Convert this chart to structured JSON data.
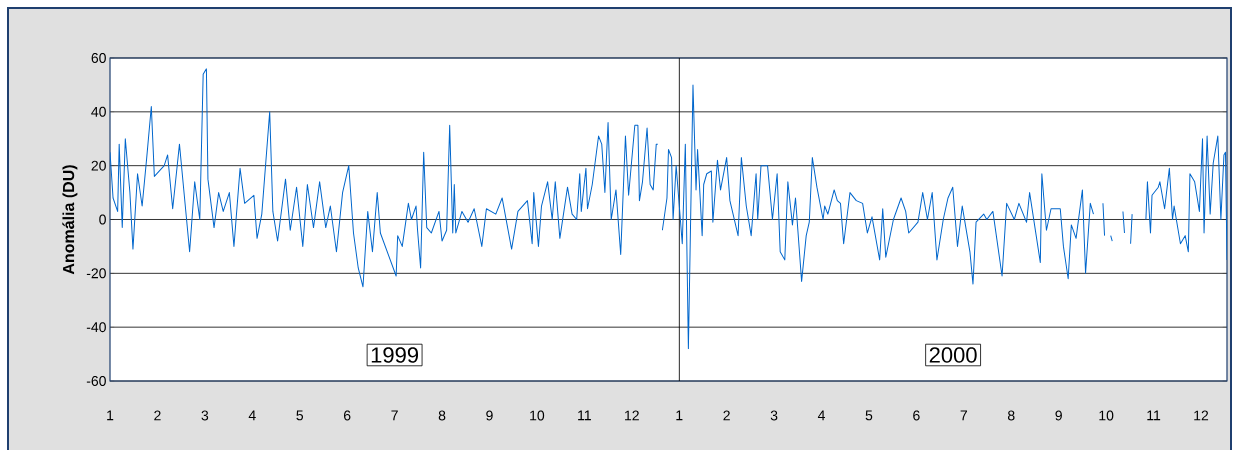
{
  "chart_data": {
    "type": "line",
    "ylabel": "Anomália (DU)",
    "color": "#0066cc",
    "annotations": [
      "1999",
      "2000"
    ],
    "x": [
      "1999-01-01",
      "1999-01-03",
      "1999-01-06",
      "1999-01-07",
      "1999-01-09",
      "1999-01-11",
      "1999-01-14",
      "1999-01-16",
      "1999-01-19",
      "1999-01-22",
      "1999-01-25",
      "1999-01-28",
      "1999-01-30",
      "1999-02-05",
      "1999-02-07",
      "1999-02-10",
      "1999-02-14",
      "1999-02-17",
      "1999-02-20",
      "1999-02-23",
      "1999-02-26",
      "1999-02-28",
      "1999-03-02",
      "1999-03-03",
      "1999-03-07",
      "1999-03-10",
      "1999-03-13",
      "1999-03-17",
      "1999-03-20",
      "1999-03-24",
      "1999-03-27",
      "1999-04-02",
      "1999-04-04",
      "1999-04-07",
      "1999-04-12",
      "1999-04-14",
      "1999-04-17",
      "1999-04-22",
      "1999-04-25",
      "1999-04-29",
      "1999-05-03",
      "1999-05-06",
      "1999-05-10",
      "1999-05-14",
      "1999-05-18",
      "1999-05-21",
      "1999-05-25",
      "1999-05-29",
      "1999-06-02",
      "1999-06-05",
      "1999-06-08",
      "1999-06-11",
      "1999-06-14",
      "1999-06-17",
      "1999-06-20",
      "1999-06-22",
      "1999-07-02",
      "1999-07-03",
      "1999-07-06",
      "1999-07-10",
      "1999-07-12",
      "1999-07-15",
      "1999-07-16",
      "1999-07-18",
      "1999-07-20",
      "1999-07-22",
      "1999-07-25",
      "1999-07-30",
      "1999-08-01",
      "1999-08-04",
      "1999-08-06",
      "1999-08-08",
      "1999-08-09",
      "1999-08-10",
      "1999-08-14",
      "1999-08-18",
      "1999-08-22",
      "1999-08-27",
      "1999-08-30",
      "1999-09-05",
      "1999-09-09",
      "1999-09-15",
      "1999-09-19",
      "1999-09-25",
      "1999-09-28",
      "1999-09-29",
      "1999-10-02",
      "1999-10-04",
      "1999-10-08",
      "1999-10-11",
      "1999-10-13",
      "1999-10-16",
      "1999-10-21",
      "1999-10-24",
      "1999-10-27",
      "1999-10-29",
      "1999-10-30",
      "1999-11-02",
      "1999-11-03",
      "1999-11-06",
      "1999-11-10",
      "1999-11-12",
      "1999-11-14",
      "1999-11-16",
      "1999-11-18",
      "1999-11-21",
      "1999-11-24",
      "1999-11-27",
      "1999-11-29",
      "1999-12-03",
      "1999-12-05",
      "1999-12-06",
      "1999-12-08",
      "1999-12-11",
      "1999-12-13",
      "1999-12-15",
      "1999-12-17",
      "1999-12-18",
      "1999-12-19",
      "1999-12-21",
      "1999-12-24",
      "1999-12-25",
      "1999-12-27",
      "1999-12-28",
      "1999-12-30",
      "2000-01-03",
      "2000-01-05",
      "2000-01-07",
      "2000-01-10",
      "2000-01-12",
      "2000-01-13",
      "2000-01-16",
      "2000-01-17",
      "2000-01-19",
      "2000-01-22",
      "2000-01-23",
      "2000-01-26",
      "2000-01-28",
      "2000-02-01",
      "2000-02-03",
      "2000-02-08",
      "2000-02-10",
      "2000-02-13",
      "2000-02-16",
      "2000-02-19",
      "2000-02-20",
      "2000-02-22",
      "2000-02-26",
      "2000-02-29",
      "2000-03-03",
      "2000-03-05",
      "2000-03-08",
      "2000-03-10",
      "2000-03-13",
      "2000-03-15",
      "2000-03-19",
      "2000-03-22",
      "2000-03-24",
      "2000-03-26",
      "2000-03-29",
      "2000-04-02",
      "2000-04-03",
      "2000-04-05",
      "2000-04-09",
      "2000-04-11",
      "2000-04-13",
      "2000-04-15",
      "2000-04-19",
      "2000-04-23",
      "2000-04-27",
      "2000-04-30",
      "2000-05-03",
      "2000-05-08",
      "2000-05-10",
      "2000-05-12",
      "2000-05-17",
      "2000-05-22",
      "2000-05-25",
      "2000-05-27",
      "2000-06-02",
      "2000-06-05",
      "2000-06-08",
      "2000-06-11",
      "2000-06-14",
      "2000-06-18",
      "2000-06-21",
      "2000-06-24",
      "2000-06-27",
      "2000-06-30",
      "2000-07-05",
      "2000-07-07",
      "2000-07-09",
      "2000-07-14",
      "2000-07-16",
      "2000-07-20",
      "2000-07-26",
      "2000-07-29",
      "2000-08-03",
      "2000-08-06",
      "2000-08-11",
      "2000-08-13",
      "2000-08-20",
      "2000-08-21",
      "2000-08-24",
      "2000-08-27",
      "2000-09-02",
      "2000-09-04",
      "2000-09-07",
      "2000-09-09",
      "2000-09-12",
      "2000-09-14",
      "2000-09-16",
      "2000-09-18",
      "2000-09-21",
      "2000-09-23",
      "2000-09-26",
      "2000-09-29",
      "2000-09-30",
      "2000-10-03",
      "2000-10-04",
      "2000-10-05",
      "2000-10-09",
      "2000-10-12",
      "2000-10-13",
      "2000-10-15",
      "2000-10-17",
      "2000-10-18",
      "2000-10-23",
      "2000-10-27",
      "2000-10-28",
      "2000-10-30",
      "2000-10-31",
      "2000-11-04",
      "2000-11-05",
      "2000-11-08",
      "2000-11-11",
      "2000-11-13",
      "2000-11-14",
      "2000-11-18",
      "2000-11-21",
      "2000-11-23",
      "2000-11-24",
      "2000-11-27",
      "2000-11-30",
      "2000-12-02",
      "2000-12-03",
      "2000-12-05",
      "2000-12-07",
      "2000-12-09",
      "2000-12-12",
      "2000-12-14",
      "2000-12-16",
      "2000-12-17",
      "2000-12-18"
    ],
    "values": [
      25,
      8,
      3,
      28,
      -3,
      30,
      10,
      -11,
      17,
      5,
      23,
      42,
      16,
      20,
      24,
      4,
      28,
      8,
      -12,
      14,
      0,
      54,
      56,
      15,
      -3,
      10,
      3,
      10,
      -10,
      19,
      6,
      9,
      -7,
      2,
      40,
      3,
      -8,
      15,
      -4,
      12,
      -10,
      13,
      -3,
      14,
      -3,
      5,
      -12,
      10,
      20,
      -5,
      -18,
      -25,
      3,
      -12,
      10,
      -5,
      -21,
      -6,
      -10,
      6,
      0,
      5,
      -4,
      -18,
      25,
      -3,
      -5,
      3,
      -8,
      -4,
      35,
      -5,
      13,
      -5,
      3,
      -1,
      4,
      -10,
      4,
      2,
      8,
      -11,
      3,
      7,
      -9,
      10,
      -10,
      5,
      14,
      0,
      14,
      -7,
      12,
      2,
      0,
      17,
      3,
      19,
      4,
      13,
      31,
      28,
      10,
      36,
      0,
      11,
      -13,
      31,
      9,
      35,
      35,
      7,
      14,
      34,
      13,
      11,
      28,
      28,
      null,
      -4,
      8,
      26,
      23,
      0,
      20,
      -9,
      28,
      -48,
      50,
      11,
      26,
      -6,
      13,
      17,
      18,
      -1,
      22,
      11,
      23,
      7,
      -6,
      23,
      5,
      -6,
      17,
      0,
      20,
      20,
      0,
      17,
      -12,
      -15,
      14,
      -2,
      8,
      -23,
      -6,
      -1,
      23,
      12,
      0,
      5,
      2,
      11,
      7,
      6,
      -9,
      10,
      7,
      6,
      -5,
      1,
      -15,
      4,
      -14,
      0,
      8,
      3,
      -5,
      -1,
      10,
      0,
      10,
      -15,
      0,
      8,
      12,
      -10,
      5,
      -12,
      -24,
      -1,
      2,
      0,
      3,
      -21,
      6,
      0,
      6,
      -1,
      10,
      -16,
      17,
      -4,
      4,
      4,
      -10,
      -22,
      -2,
      -7,
      2,
      11,
      -20,
      6,
      2,
      null,
      6,
      -6,
      null,
      -6,
      -8,
      null,
      3,
      -5,
      null,
      -9,
      2,
      null,
      0,
      14,
      -5,
      9,
      12,
      14,
      4,
      19,
      0,
      5,
      -9,
      -6,
      -12,
      17,
      14,
      3,
      30,
      -5,
      31,
      2,
      21,
      31,
      0,
      24,
      25,
      -15
    ],
    "xlim": [
      "1999-01-01",
      "2000-12-18"
    ],
    "ylim": [
      -60,
      60
    ],
    "xticks": [
      {
        "value": "1999-01",
        "label": "1"
      },
      {
        "value": "1999-02",
        "label": "2"
      },
      {
        "value": "1999-03",
        "label": "3"
      },
      {
        "value": "1999-04",
        "label": "4"
      },
      {
        "value": "1999-05",
        "label": "5"
      },
      {
        "value": "1999-06",
        "label": "6"
      },
      {
        "value": "1999-07",
        "label": "7"
      },
      {
        "value": "1999-08",
        "label": "8"
      },
      {
        "value": "1999-09",
        "label": "9"
      },
      {
        "value": "1999-10",
        "label": "10"
      },
      {
        "value": "1999-11",
        "label": "11"
      },
      {
        "value": "1999-12",
        "label": "12"
      },
      {
        "value": "2000-01",
        "label": "1"
      },
      {
        "value": "2000-02",
        "label": "2"
      },
      {
        "value": "2000-03",
        "label": "3"
      },
      {
        "value": "2000-04",
        "label": "4"
      },
      {
        "value": "2000-05",
        "label": "5"
      },
      {
        "value": "2000-06",
        "label": "6"
      },
      {
        "value": "2000-07",
        "label": "7"
      },
      {
        "value": "2000-08",
        "label": "8"
      },
      {
        "value": "2000-09",
        "label": "9"
      },
      {
        "value": "2000-10",
        "label": "10"
      },
      {
        "value": "2000-11",
        "label": "11"
      },
      {
        "value": "2000-12",
        "label": "12"
      }
    ],
    "yticks": [
      -60,
      -40,
      -20,
      0,
      20,
      40,
      60
    ],
    "grid": "y",
    "ref_lines": [
      {
        "axis": "x",
        "value": "2000-01-01",
        "color": "#000000"
      }
    ]
  }
}
